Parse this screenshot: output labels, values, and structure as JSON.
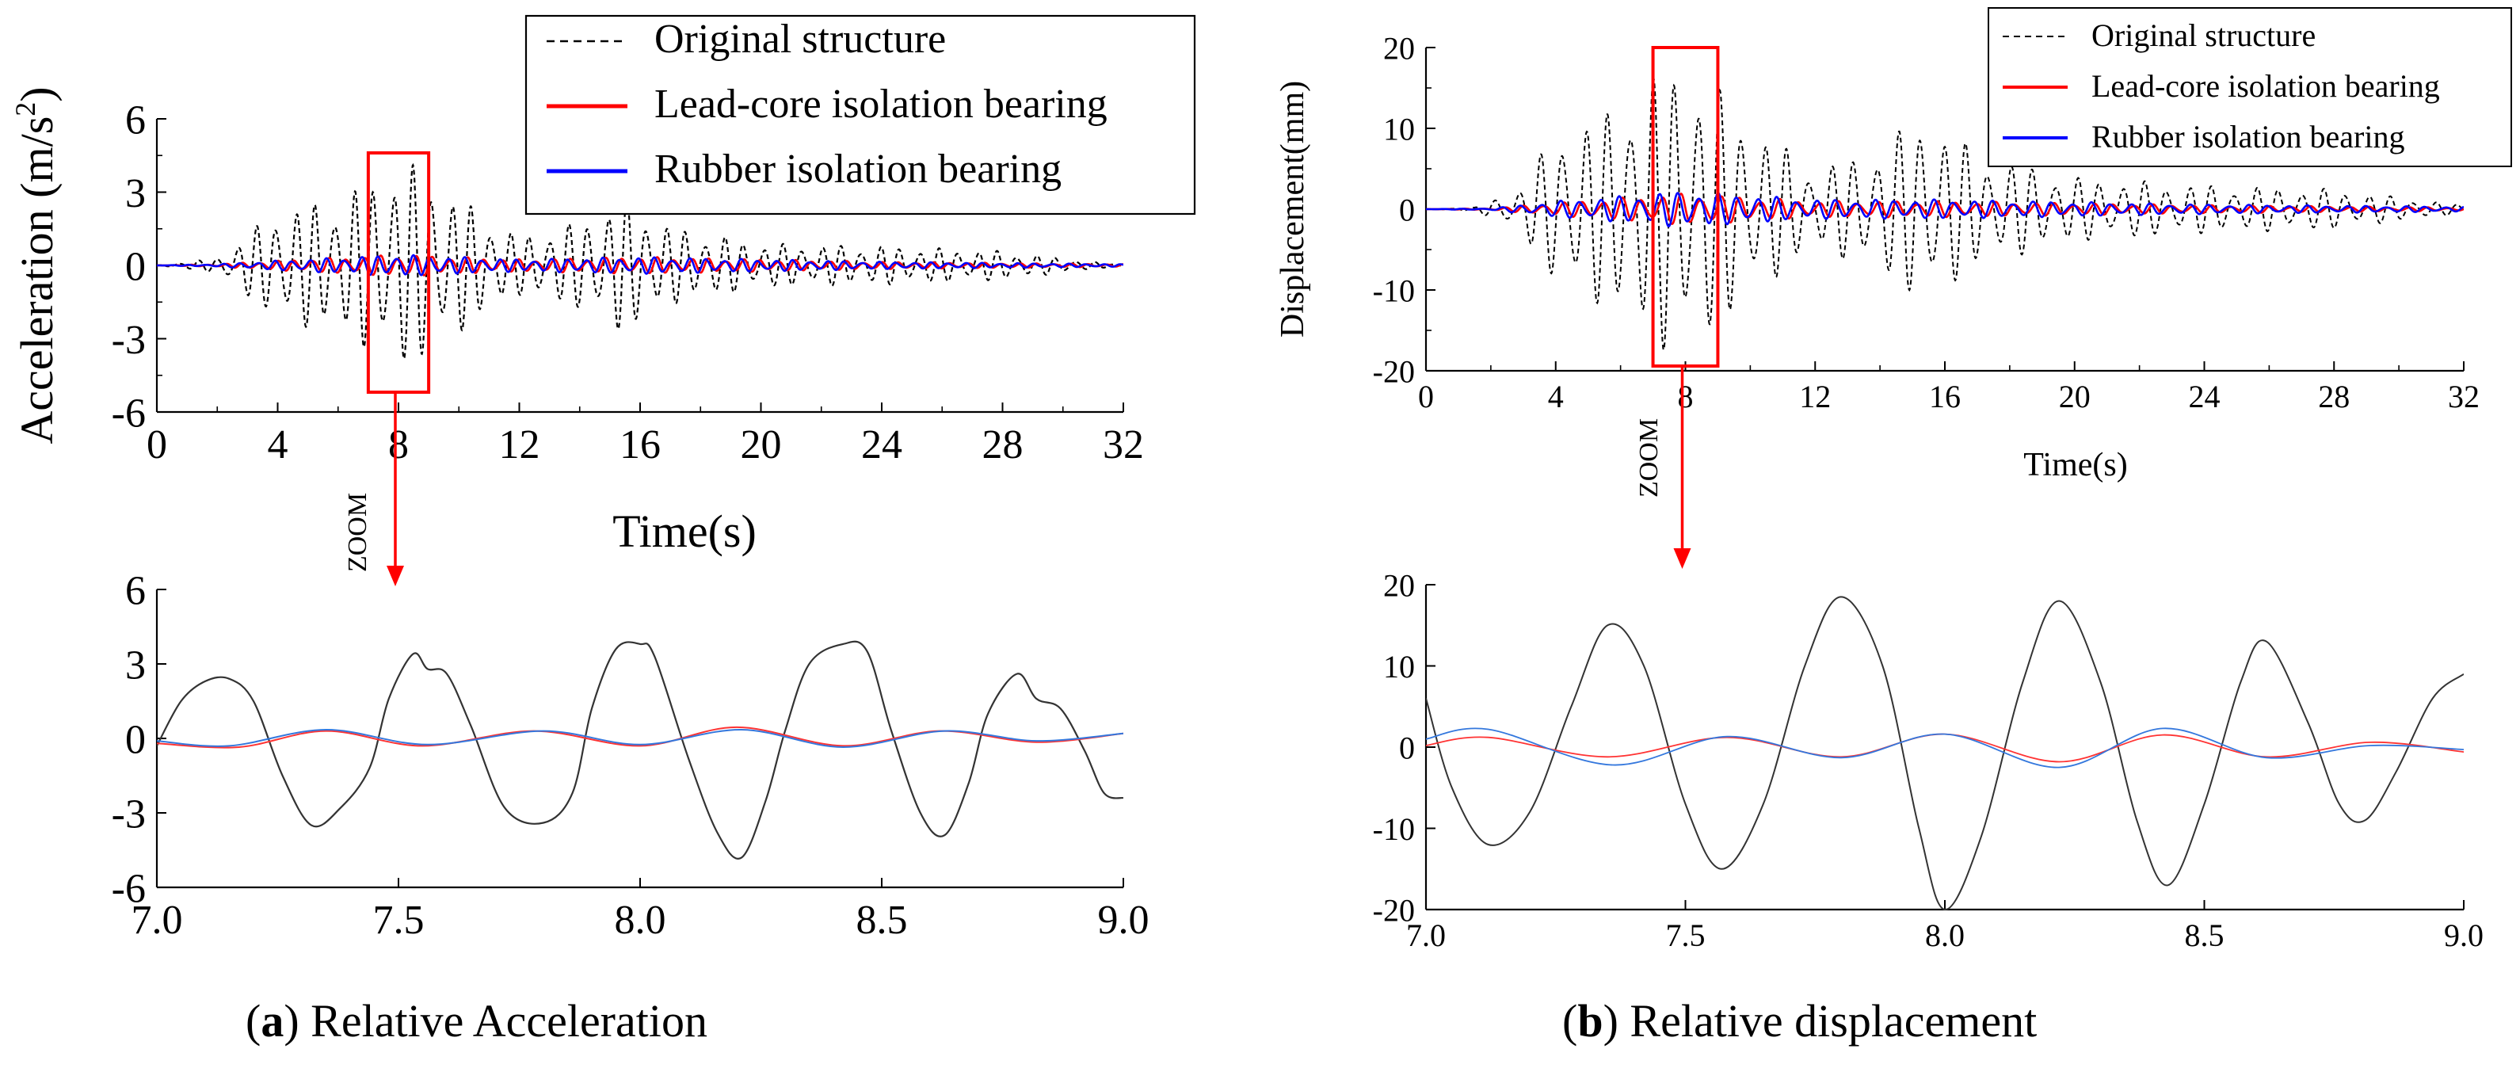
{
  "colors": {
    "original": "#000000",
    "lead": "#ff0000",
    "rubber": "#0000ff",
    "zoom": "#ff0000"
  },
  "zoom_label": "ZOOM",
  "captions": {
    "a_letter": "a",
    "a_text": " Relative Acceleration",
    "b_letter": "b",
    "b_text": " Relative displacement"
  },
  "chart_data": [
    {
      "id": "acc_full",
      "type": "line",
      "title": "",
      "xlabel": "Time(s)",
      "ylabel": "Acceleration (m/s",
      "ylabel_sup": "2",
      "ylabel_end": ")",
      "xlim": [
        0,
        32
      ],
      "ylim": [
        -6,
        6
      ],
      "xticks": [
        "0",
        "4",
        "8",
        "12",
        "16",
        "20",
        "24",
        "28",
        "32"
      ],
      "yticks": [
        "-6",
        "-3",
        "0",
        "3",
        "6"
      ],
      "legend": [
        "Original structure",
        "Lead-core isolation bearing",
        "Rubber isolation bearing"
      ],
      "legend_position": "top-right",
      "zoom_window": [
        7,
        9
      ],
      "series": [
        {
          "name": "Original structure",
          "style": "dashed",
          "values": [
            {
              "t": 0,
              "amp": 0
            },
            {
              "t": 2,
              "amp": 0.3
            },
            {
              "t": 4,
              "amp": 2.3
            },
            {
              "t": 6,
              "amp": 2.8
            },
            {
              "t": 7.5,
              "amp": 3.8
            },
            {
              "t": 8,
              "amp": 4.4
            },
            {
              "t": 9,
              "amp": 3.8
            },
            {
              "t": 10,
              "amp": 2.8
            },
            {
              "t": 12,
              "amp": 1.2
            },
            {
              "t": 14,
              "amp": 1.8
            },
            {
              "t": 15.5,
              "amp": 2.9
            },
            {
              "t": 17,
              "amp": 1.6
            },
            {
              "t": 20,
              "amp": 0.9
            },
            {
              "t": 24,
              "amp": 0.8
            },
            {
              "t": 28,
              "amp": 0.6
            },
            {
              "t": 30,
              "amp": 0.3
            },
            {
              "t": 32,
              "amp": 0
            }
          ]
        },
        {
          "name": "Lead-core isolation bearing",
          "style": "solid",
          "values": [
            {
              "t": 0,
              "amp": 0
            },
            {
              "t": 2,
              "amp": 0.05
            },
            {
              "t": 4,
              "amp": 0.2
            },
            {
              "t": 8,
              "amp": 0.45
            },
            {
              "t": 12,
              "amp": 0.25
            },
            {
              "t": 16,
              "amp": 0.35
            },
            {
              "t": 24,
              "amp": 0.15
            },
            {
              "t": 32,
              "amp": 0.05
            }
          ]
        },
        {
          "name": "Rubber isolation bearing",
          "style": "solid",
          "values": [
            {
              "t": 0,
              "amp": 0
            },
            {
              "t": 2,
              "amp": 0.05
            },
            {
              "t": 4,
              "amp": 0.2
            },
            {
              "t": 8,
              "amp": 0.45
            },
            {
              "t": 12,
              "amp": 0.25
            },
            {
              "t": 16,
              "amp": 0.35
            },
            {
              "t": 24,
              "amp": 0.15
            },
            {
              "t": 32,
              "amp": 0.05
            }
          ]
        }
      ]
    },
    {
      "id": "acc_zoom",
      "type": "line",
      "title": "",
      "xlim": [
        7.0,
        9.0
      ],
      "ylim": [
        -6,
        6
      ],
      "xticks": [
        "7.0",
        "7.5",
        "8.0",
        "8.5",
        "9.0"
      ],
      "yticks": [
        "-6",
        "-3",
        "0",
        "3",
        "6"
      ],
      "series": [
        {
          "name": "Original structure",
          "values": [
            {
              "x": 7.0,
              "y": -0.3
            },
            {
              "x": 7.05,
              "y": 1.5
            },
            {
              "x": 7.1,
              "y": 2.3
            },
            {
              "x": 7.15,
              "y": 2.4
            },
            {
              "x": 7.2,
              "y": 1.5
            },
            {
              "x": 7.26,
              "y": -1.5
            },
            {
              "x": 7.32,
              "y": -3.5
            },
            {
              "x": 7.38,
              "y": -2.8
            },
            {
              "x": 7.44,
              "y": -1.2
            },
            {
              "x": 7.48,
              "y": 1.6
            },
            {
              "x": 7.53,
              "y": 3.4
            },
            {
              "x": 7.56,
              "y": 2.8
            },
            {
              "x": 7.6,
              "y": 2.6
            },
            {
              "x": 7.65,
              "y": 0.5
            },
            {
              "x": 7.72,
              "y": -2.8
            },
            {
              "x": 7.8,
              "y": -3.4
            },
            {
              "x": 7.86,
              "y": -2.2
            },
            {
              "x": 7.9,
              "y": 1.2
            },
            {
              "x": 7.95,
              "y": 3.6
            },
            {
              "x": 8.0,
              "y": 3.8
            },
            {
              "x": 8.03,
              "y": 3.3
            },
            {
              "x": 8.1,
              "y": -0.8
            },
            {
              "x": 8.16,
              "y": -3.8
            },
            {
              "x": 8.21,
              "y": -4.8
            },
            {
              "x": 8.26,
              "y": -2.5
            },
            {
              "x": 8.3,
              "y": 0.3
            },
            {
              "x": 8.35,
              "y": 3.0
            },
            {
              "x": 8.42,
              "y": 3.8
            },
            {
              "x": 8.47,
              "y": 3.5
            },
            {
              "x": 8.52,
              "y": 0.3
            },
            {
              "x": 8.58,
              "y": -3.0
            },
            {
              "x": 8.63,
              "y": -3.9
            },
            {
              "x": 8.68,
              "y": -1.8
            },
            {
              "x": 8.72,
              "y": 1.0
            },
            {
              "x": 8.78,
              "y": 2.6
            },
            {
              "x": 8.82,
              "y": 1.6
            },
            {
              "x": 8.87,
              "y": 1.2
            },
            {
              "x": 8.92,
              "y": -0.5
            },
            {
              "x": 8.96,
              "y": -2.2
            },
            {
              "x": 9.0,
              "y": -2.4
            }
          ]
        },
        {
          "name": "Lead-core isolation bearing",
          "values": [
            {
              "x": 7.0,
              "y": -0.2
            },
            {
              "x": 7.17,
              "y": -0.35
            },
            {
              "x": 7.35,
              "y": 0.3
            },
            {
              "x": 7.55,
              "y": -0.3
            },
            {
              "x": 7.78,
              "y": 0.3
            },
            {
              "x": 8.0,
              "y": -0.3
            },
            {
              "x": 8.2,
              "y": 0.45
            },
            {
              "x": 8.42,
              "y": -0.3
            },
            {
              "x": 8.62,
              "y": 0.3
            },
            {
              "x": 8.82,
              "y": -0.15
            },
            {
              "x": 9.0,
              "y": 0.2
            }
          ]
        },
        {
          "name": "Rubber isolation bearing",
          "values": [
            {
              "x": 7.0,
              "y": -0.1
            },
            {
              "x": 7.15,
              "y": -0.3
            },
            {
              "x": 7.35,
              "y": 0.35
            },
            {
              "x": 7.56,
              "y": -0.25
            },
            {
              "x": 7.8,
              "y": 0.3
            },
            {
              "x": 8.0,
              "y": -0.25
            },
            {
              "x": 8.21,
              "y": 0.35
            },
            {
              "x": 8.42,
              "y": -0.35
            },
            {
              "x": 8.63,
              "y": 0.3
            },
            {
              "x": 8.82,
              "y": -0.1
            },
            {
              "x": 9.0,
              "y": 0.2
            }
          ]
        }
      ]
    },
    {
      "id": "disp_full",
      "type": "line",
      "title": "",
      "xlabel": "Time(s)",
      "ylabel": "Displacement(mm)",
      "xlim": [
        0,
        32
      ],
      "ylim": [
        -20,
        20
      ],
      "xticks": [
        "0",
        "4",
        "8",
        "12",
        "16",
        "20",
        "24",
        "28",
        "32"
      ],
      "yticks": [
        "-20",
        "-10",
        "0",
        "10",
        "20"
      ],
      "legend": [
        "Original structure",
        "Lead-core isolation bearing",
        "Rubber isolation bearing"
      ],
      "legend_position": "top-right",
      "zoom_window": [
        7,
        9
      ],
      "series": [
        {
          "name": "Original structure",
          "style": "dashed",
          "values": [
            {
              "t": 0,
              "amp": 0
            },
            {
              "t": 1.5,
              "amp": 0.2
            },
            {
              "t": 3,
              "amp": 3
            },
            {
              "t": 4,
              "amp": 10
            },
            {
              "t": 5.5,
              "amp": 12
            },
            {
              "t": 6.5,
              "amp": 16
            },
            {
              "t": 7.8,
              "amp": 18.5
            },
            {
              "t": 8.5,
              "amp": 17
            },
            {
              "t": 10,
              "amp": 11
            },
            {
              "t": 12,
              "amp": 5
            },
            {
              "t": 13.5,
              "amp": 7
            },
            {
              "t": 15.5,
              "amp": 12
            },
            {
              "t": 17,
              "amp": 7
            },
            {
              "t": 20,
              "amp": 4
            },
            {
              "t": 24,
              "amp": 3
            },
            {
              "t": 28,
              "amp": 2.5
            },
            {
              "t": 32,
              "amp": 0.5
            }
          ]
        },
        {
          "name": "Lead-core isolation bearing",
          "style": "solid",
          "values": [
            {
              "t": 0,
              "amp": 0
            },
            {
              "t": 2,
              "amp": 0.1
            },
            {
              "t": 4,
              "amp": 0.8
            },
            {
              "t": 8,
              "amp": 2
            },
            {
              "t": 12,
              "amp": 1
            },
            {
              "t": 16,
              "amp": 1
            },
            {
              "t": 24,
              "amp": 0.5
            },
            {
              "t": 32,
              "amp": 0.2
            }
          ]
        },
        {
          "name": "Rubber isolation bearing",
          "style": "solid",
          "values": [
            {
              "t": 0,
              "amp": 0
            },
            {
              "t": 2,
              "amp": 0.1
            },
            {
              "t": 4,
              "amp": 1
            },
            {
              "t": 8,
              "amp": 2.3
            },
            {
              "t": 12,
              "amp": 1.2
            },
            {
              "t": 16,
              "amp": 1.2
            },
            {
              "t": 24,
              "amp": 0.6
            },
            {
              "t": 32,
              "amp": 0.3
            }
          ]
        }
      ]
    },
    {
      "id": "disp_zoom",
      "type": "line",
      "title": "",
      "xlim": [
        7.0,
        9.0
      ],
      "ylim": [
        -20,
        20
      ],
      "xticks": [
        "7.0",
        "7.5",
        "8.0",
        "8.5",
        "9.0"
      ],
      "yticks": [
        "-20",
        "-10",
        "0",
        "10",
        "20"
      ],
      "series": [
        {
          "name": "Original structure",
          "values": [
            {
              "x": 7.0,
              "y": 6
            },
            {
              "x": 7.05,
              "y": -5
            },
            {
              "x": 7.12,
              "y": -12
            },
            {
              "x": 7.2,
              "y": -8
            },
            {
              "x": 7.28,
              "y": 5
            },
            {
              "x": 7.35,
              "y": 15
            },
            {
              "x": 7.42,
              "y": 10
            },
            {
              "x": 7.5,
              "y": -7
            },
            {
              "x": 7.57,
              "y": -15
            },
            {
              "x": 7.65,
              "y": -7
            },
            {
              "x": 7.73,
              "y": 10
            },
            {
              "x": 7.8,
              "y": 18.5
            },
            {
              "x": 7.88,
              "y": 10
            },
            {
              "x": 7.95,
              "y": -10
            },
            {
              "x": 8.0,
              "y": -20
            },
            {
              "x": 8.07,
              "y": -11
            },
            {
              "x": 8.15,
              "y": 8
            },
            {
              "x": 8.22,
              "y": 18
            },
            {
              "x": 8.3,
              "y": 8
            },
            {
              "x": 8.37,
              "y": -9
            },
            {
              "x": 8.43,
              "y": -17
            },
            {
              "x": 8.5,
              "y": -7
            },
            {
              "x": 8.57,
              "y": 8
            },
            {
              "x": 8.62,
              "y": 13
            },
            {
              "x": 8.7,
              "y": 3
            },
            {
              "x": 8.76,
              "y": -7
            },
            {
              "x": 8.81,
              "y": -9
            },
            {
              "x": 8.87,
              "y": -3
            },
            {
              "x": 8.94,
              "y": 6
            },
            {
              "x": 9.0,
              "y": 9
            }
          ]
        },
        {
          "name": "Lead-core isolation bearing",
          "values": [
            {
              "x": 7.0,
              "y": 0.2
            },
            {
              "x": 7.12,
              "y": 1.2
            },
            {
              "x": 7.35,
              "y": -1.2
            },
            {
              "x": 7.58,
              "y": 1.2
            },
            {
              "x": 7.8,
              "y": -1.2
            },
            {
              "x": 8.0,
              "y": 1.6
            },
            {
              "x": 8.22,
              "y": -1.8
            },
            {
              "x": 8.42,
              "y": 1.5
            },
            {
              "x": 8.62,
              "y": -1.2
            },
            {
              "x": 8.82,
              "y": 0.6
            },
            {
              "x": 9.0,
              "y": -0.6
            }
          ]
        },
        {
          "name": "Rubber isolation bearing",
          "values": [
            {
              "x": 7.0,
              "y": 1.0
            },
            {
              "x": 7.12,
              "y": 2.2
            },
            {
              "x": 7.36,
              "y": -2.2
            },
            {
              "x": 7.58,
              "y": 1.3
            },
            {
              "x": 7.8,
              "y": -1.3
            },
            {
              "x": 8.0,
              "y": 1.6
            },
            {
              "x": 8.22,
              "y": -2.5
            },
            {
              "x": 8.42,
              "y": 2.3
            },
            {
              "x": 8.62,
              "y": -1.3
            },
            {
              "x": 8.82,
              "y": 0.2
            },
            {
              "x": 9.0,
              "y": -0.3
            }
          ]
        }
      ]
    }
  ]
}
